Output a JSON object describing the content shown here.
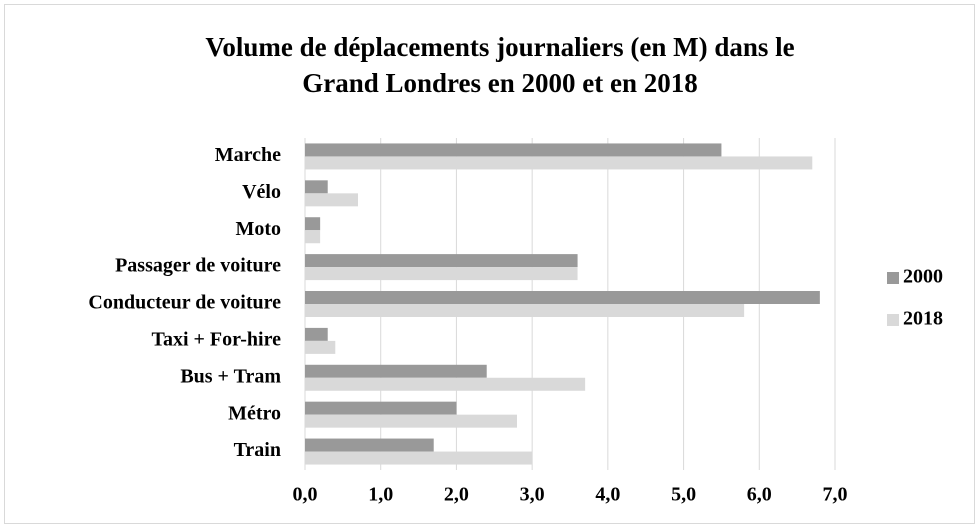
{
  "chart_data": {
    "type": "bar",
    "orientation": "horizontal",
    "title": "Volume de déplacements journaliers (en M) dans le Grand Londres en 2000 et en 2018",
    "categories": [
      "Marche",
      "Vélo",
      "Moto",
      "Passager de voiture",
      "Conducteur de voiture",
      "Taxi + For-hire",
      "Bus + Tram",
      "Métro",
      "Train"
    ],
    "series": [
      {
        "name": "2000",
        "color": "#999999",
        "values": [
          5.5,
          0.3,
          0.2,
          3.6,
          6.8,
          0.3,
          2.4,
          2.0,
          1.7
        ]
      },
      {
        "name": "2018",
        "color": "#d9d9d9",
        "values": [
          6.7,
          0.7,
          0.2,
          3.6,
          5.8,
          0.4,
          3.7,
          2.8,
          3.0
        ]
      }
    ],
    "xlim": [
      0,
      7
    ],
    "xticks": [
      {
        "value": 0,
        "label": "0,0"
      },
      {
        "value": 1,
        "label": "1,0"
      },
      {
        "value": 2,
        "label": "2,0"
      },
      {
        "value": 3,
        "label": "3,0"
      },
      {
        "value": 4,
        "label": "4,0"
      },
      {
        "value": 5,
        "label": "5,0"
      },
      {
        "value": 6,
        "label": "6,0"
      },
      {
        "value": 7,
        "label": "7,0"
      }
    ],
    "grid": true,
    "legend": "right"
  }
}
